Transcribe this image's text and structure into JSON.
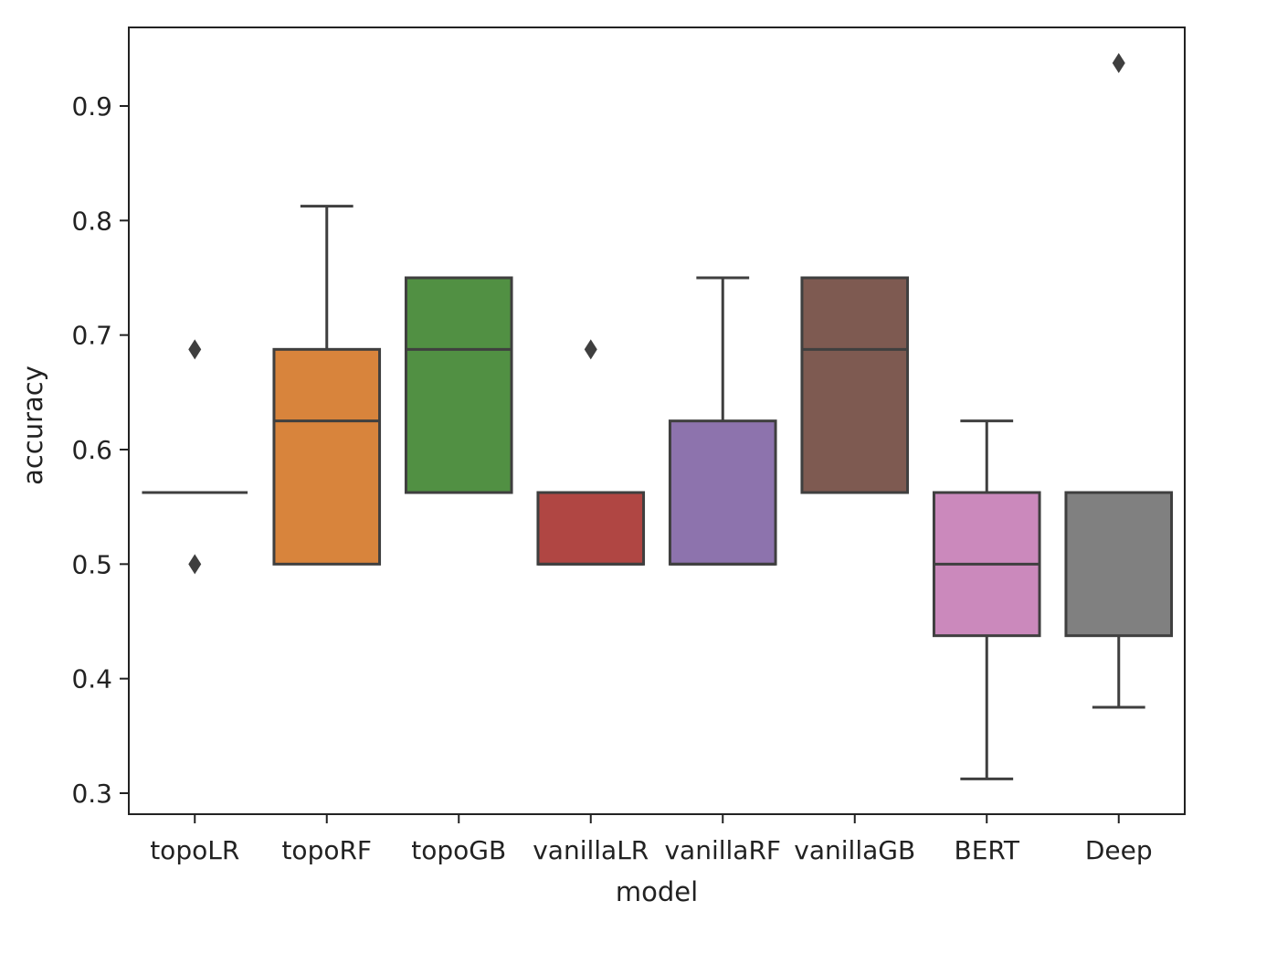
{
  "chart_data": {
    "type": "box",
    "title": "",
    "xlabel": "model",
    "ylabel": "accuracy",
    "ylim": [
      0.28,
      0.97
    ],
    "yticks": [
      0.3,
      0.4,
      0.5,
      0.6,
      0.7,
      0.8,
      0.9
    ],
    "ytick_labels": [
      "0.3",
      "0.4",
      "0.5",
      "0.6",
      "0.7",
      "0.8",
      "0.9"
    ],
    "categories": [
      "topoLR",
      "topoRF",
      "topoGB",
      "vanillaLR",
      "vanillaRF",
      "vanillaGB",
      "BERT",
      "Deep"
    ],
    "boxes": [
      {
        "name": "topoLR",
        "color": "#3a75ae",
        "whisker_low": 0.5625,
        "q1": 0.5625,
        "median": 0.5625,
        "q3": 0.5625,
        "whisker_high": 0.5625,
        "outliers": [
          0.6875,
          0.5
        ]
      },
      {
        "name": "topoRF",
        "color": "#d8843c",
        "whisker_low": 0.5,
        "q1": 0.5,
        "median": 0.625,
        "q3": 0.6875,
        "whisker_high": 0.8125,
        "outliers": []
      },
      {
        "name": "topoGB",
        "color": "#519043",
        "whisker_low": 0.5625,
        "q1": 0.5625,
        "median": 0.6875,
        "q3": 0.75,
        "whisker_high": 0.75,
        "outliers": []
      },
      {
        "name": "vanillaLR",
        "color": "#b04643",
        "whisker_low": 0.5,
        "q1": 0.5,
        "median": 0.5,
        "q3": 0.5625,
        "whisker_high": 0.5625,
        "outliers": [
          0.6875
        ]
      },
      {
        "name": "vanillaRF",
        "color": "#8d73ad",
        "whisker_low": 0.5,
        "q1": 0.5,
        "median": 0.5,
        "q3": 0.625,
        "whisker_high": 0.75,
        "outliers": []
      },
      {
        "name": "vanillaGB",
        "color": "#7e5a51",
        "whisker_low": 0.5625,
        "q1": 0.5625,
        "median": 0.6875,
        "q3": 0.75,
        "whisker_high": 0.75,
        "outliers": []
      },
      {
        "name": "BERT",
        "color": "#cb89bc",
        "whisker_low": 0.3125,
        "q1": 0.4375,
        "median": 0.5,
        "q3": 0.5625,
        "whisker_high": 0.625,
        "outliers": []
      },
      {
        "name": "Deep",
        "color": "#808080",
        "whisker_low": 0.375,
        "q1": 0.4375,
        "median": 0.5625,
        "q3": 0.5625,
        "whisker_high": 0.5625,
        "outliers": [
          0.9375
        ]
      }
    ],
    "grid": false,
    "legend": "none"
  }
}
